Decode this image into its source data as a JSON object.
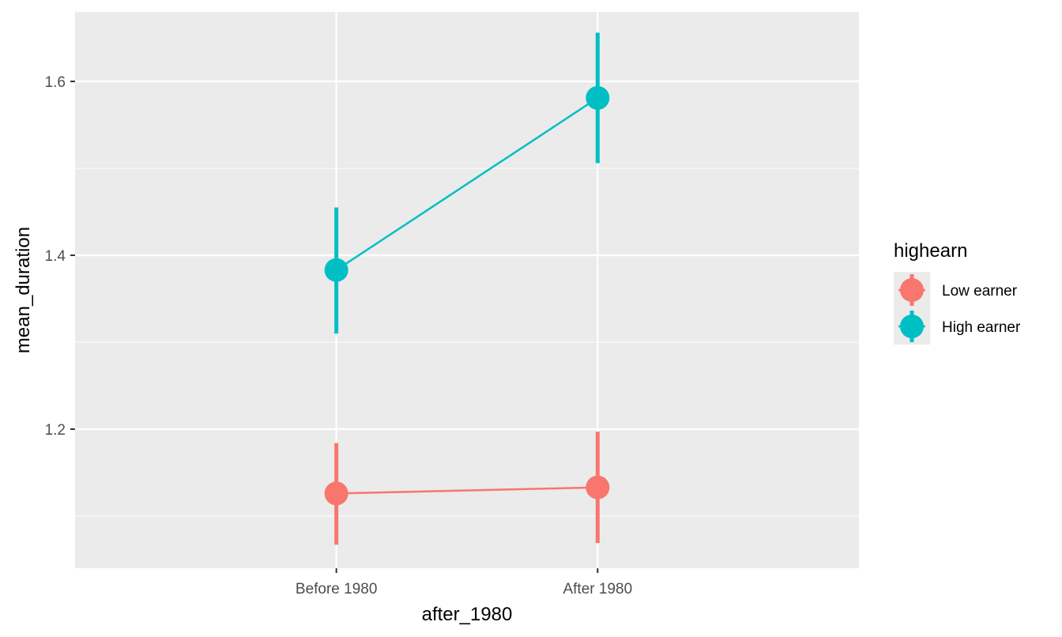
{
  "chart_data": {
    "type": "line",
    "title": "",
    "xlabel": "after_1980",
    "ylabel": "mean_duration",
    "categories": [
      "Before 1980",
      "After 1980"
    ],
    "ylim": [
      1.04,
      1.68
    ],
    "y_ticks": [
      1.2,
      1.4,
      1.6
    ],
    "y_tick_labels": [
      "1.2",
      "1.4",
      "1.6"
    ],
    "grid": true,
    "legend": {
      "title": "highearn",
      "placement": "right"
    },
    "series": [
      {
        "name": "Low earner",
        "color": "#F8766D",
        "values": [
          1.126,
          1.133
        ],
        "lower": [
          1.067,
          1.069
        ],
        "upper": [
          1.184,
          1.197
        ]
      },
      {
        "name": "High earner",
        "color": "#00BFC4",
        "values": [
          1.383,
          1.581
        ],
        "lower": [
          1.31,
          1.506
        ],
        "upper": [
          1.455,
          1.656
        ]
      }
    ]
  }
}
